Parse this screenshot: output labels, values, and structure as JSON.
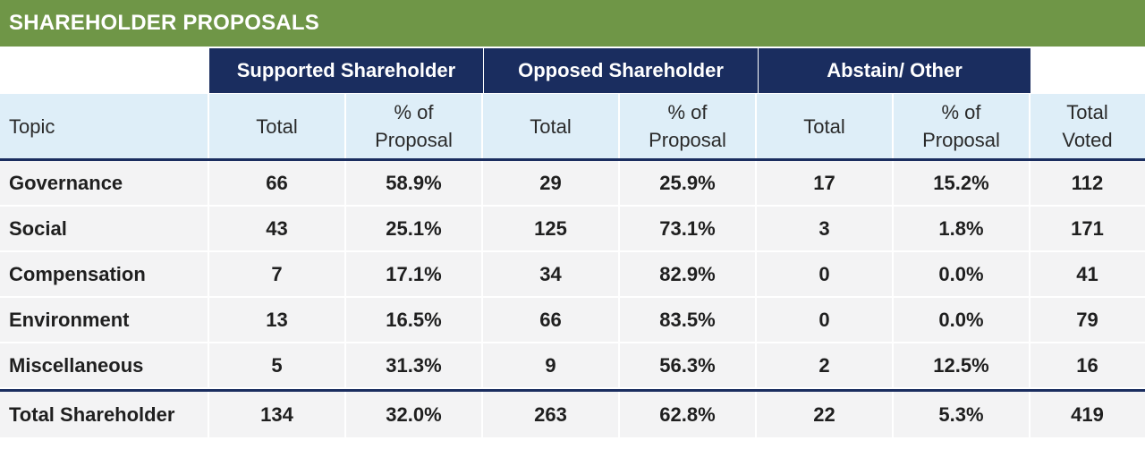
{
  "title": "SHAREHOLDER PROPOSALS",
  "groups": {
    "supported": "Supported Shareholder",
    "opposed": "Opposed Shareholder",
    "abstain": "Abstain/ Other"
  },
  "subheaders": {
    "topic": "Topic",
    "total": "Total",
    "pct_line1": "% of",
    "pct_line2": "Proposal",
    "total_voted_line1": "Total",
    "total_voted_line2": "Voted"
  },
  "chart_data": {
    "type": "table",
    "title": "SHAREHOLDER PROPOSALS",
    "columns": [
      "Topic",
      "Supported Shareholder Total",
      "Supported Shareholder % of Proposal",
      "Opposed Shareholder Total",
      "Opposed Shareholder % of Proposal",
      "Abstain/ Other Total",
      "Abstain/ Other % of Proposal",
      "Total Voted"
    ],
    "rows": [
      {
        "topic": "Governance",
        "sup_total": "66",
        "sup_pct": "58.9%",
        "opp_total": "29",
        "opp_pct": "25.9%",
        "abs_total": "17",
        "abs_pct": "15.2%",
        "total_voted": "112"
      },
      {
        "topic": "Social",
        "sup_total": "43",
        "sup_pct": "25.1%",
        "opp_total": "125",
        "opp_pct": "73.1%",
        "abs_total": "3",
        "abs_pct": "1.8%",
        "total_voted": "171"
      },
      {
        "topic": "Compensation",
        "sup_total": "7",
        "sup_pct": "17.1%",
        "opp_total": "34",
        "opp_pct": "82.9%",
        "abs_total": "0",
        "abs_pct": "0.0%",
        "total_voted": "41"
      },
      {
        "topic": "Environment",
        "sup_total": "13",
        "sup_pct": "16.5%",
        "opp_total": "66",
        "opp_pct": "83.5%",
        "abs_total": "0",
        "abs_pct": "0.0%",
        "total_voted": "79"
      },
      {
        "topic": "Miscellaneous",
        "sup_total": "5",
        "sup_pct": "31.3%",
        "opp_total": "9",
        "opp_pct": "56.3%",
        "abs_total": "2",
        "abs_pct": "12.5%",
        "total_voted": "16"
      }
    ],
    "total_row": {
      "topic": "Total Shareholder",
      "sup_total": "134",
      "sup_pct": "32.0%",
      "opp_total": "263",
      "opp_pct": "62.8%",
      "abs_total": "22",
      "abs_pct": "5.3%",
      "total_voted": "419"
    }
  },
  "colors": {
    "title_bar": "#6f9647",
    "group_header": "#1a2d5f",
    "subheader_bg": "#deeef8",
    "row_bg": "#f3f3f4"
  }
}
